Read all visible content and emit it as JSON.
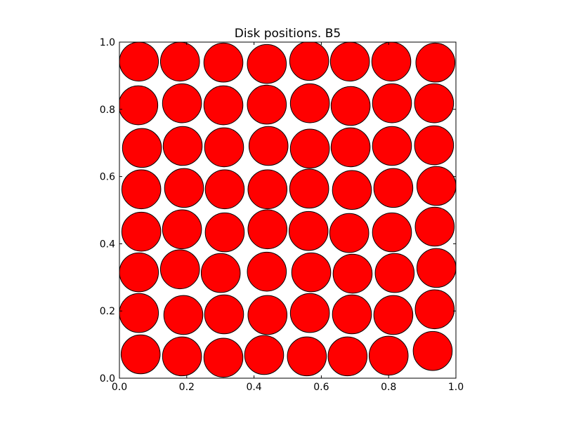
{
  "chart_data": {
    "type": "scatter",
    "title": "Disk positions. B5",
    "x": [
      0.058,
      0.18,
      0.309,
      0.438,
      0.564,
      0.685,
      0.808,
      0.939,
      0.056,
      0.186,
      0.309,
      0.438,
      0.566,
      0.687,
      0.81,
      0.935,
      0.067,
      0.188,
      0.311,
      0.443,
      0.566,
      0.687,
      0.81,
      0.935,
      0.065,
      0.192,
      0.313,
      0.44,
      0.564,
      0.691,
      0.814,
      0.942,
      0.065,
      0.186,
      0.313,
      0.44,
      0.562,
      0.683,
      0.81,
      0.937,
      0.058,
      0.18,
      0.301,
      0.438,
      0.57,
      0.693,
      0.818,
      0.942,
      0.058,
      0.19,
      0.311,
      0.44,
      0.566,
      0.691,
      0.814,
      0.937,
      0.063,
      0.186,
      0.309,
      0.43,
      0.557,
      0.678,
      0.8,
      0.931
    ],
    "values": [
      0.942,
      0.942,
      0.939,
      0.935,
      0.944,
      0.942,
      0.942,
      0.939,
      0.812,
      0.818,
      0.812,
      0.814,
      0.818,
      0.81,
      0.818,
      0.818,
      0.685,
      0.691,
      0.687,
      0.691,
      0.683,
      0.687,
      0.691,
      0.693,
      0.562,
      0.566,
      0.562,
      0.562,
      0.564,
      0.56,
      0.566,
      0.572,
      0.436,
      0.443,
      0.434,
      0.443,
      0.438,
      0.432,
      0.434,
      0.451,
      0.315,
      0.324,
      0.313,
      0.317,
      0.315,
      0.311,
      0.313,
      0.328,
      0.194,
      0.188,
      0.19,
      0.188,
      0.194,
      0.19,
      0.188,
      0.205,
      0.071,
      0.065,
      0.061,
      0.069,
      0.065,
      0.065,
      0.067,
      0.081
    ],
    "radius": 0.058,
    "color": "#ff0000",
    "xlim": [
      0,
      1
    ],
    "ylim": [
      0,
      1
    ],
    "xticks": [
      {
        "value": 0,
        "label": "0.0"
      },
      {
        "value": 0.2,
        "label": "0.2"
      },
      {
        "value": 0.4,
        "label": "0.4"
      },
      {
        "value": 0.6,
        "label": "0.6"
      },
      {
        "value": 0.8,
        "label": "0.8"
      },
      {
        "value": 1,
        "label": "1.0"
      }
    ],
    "yticks": [
      {
        "value": 0,
        "label": "0.0"
      },
      {
        "value": 0.2,
        "label": "0.2"
      },
      {
        "value": 0.4,
        "label": "0.4"
      },
      {
        "value": 0.6,
        "label": "0.6"
      },
      {
        "value": 0.8,
        "label": "0.8"
      },
      {
        "value": 1,
        "label": "1.0"
      }
    ]
  }
}
